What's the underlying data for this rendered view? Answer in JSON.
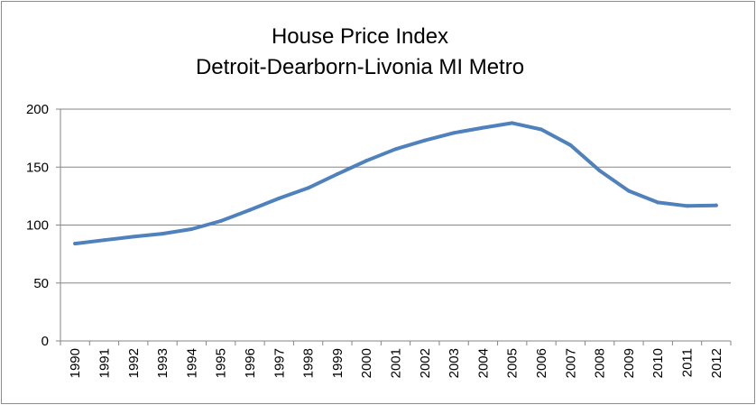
{
  "chart_data": {
    "type": "line",
    "title": "House Price Index",
    "subtitle": "Detroit-Dearborn-Livonia MI Metro",
    "xlabel": "",
    "ylabel": "",
    "categories": [
      "1990",
      "1991",
      "1992",
      "1993",
      "1994",
      "1995",
      "1996",
      "1997",
      "1998",
      "1999",
      "2000",
      "2001",
      "2002",
      "2003",
      "2004",
      "2005",
      "2006",
      "2007",
      "2008",
      "2009",
      "2010",
      "2011",
      "2012"
    ],
    "series": [
      {
        "values": [
          84,
          87,
          90,
          92.5,
          96.5,
          103.5,
          113,
          123,
          132,
          144,
          155.5,
          165.5,
          173,
          179.5,
          184,
          188,
          182.5,
          169,
          147,
          129.5,
          119.5,
          116.5,
          117
        ]
      }
    ],
    "ylim": [
      0,
      200
    ],
    "yticks": [
      0,
      50,
      100,
      150,
      200
    ],
    "grid": true,
    "legend": "none",
    "colors": {
      "line": "#4f81bd",
      "grid": "#868686",
      "axis": "#868686"
    }
  }
}
